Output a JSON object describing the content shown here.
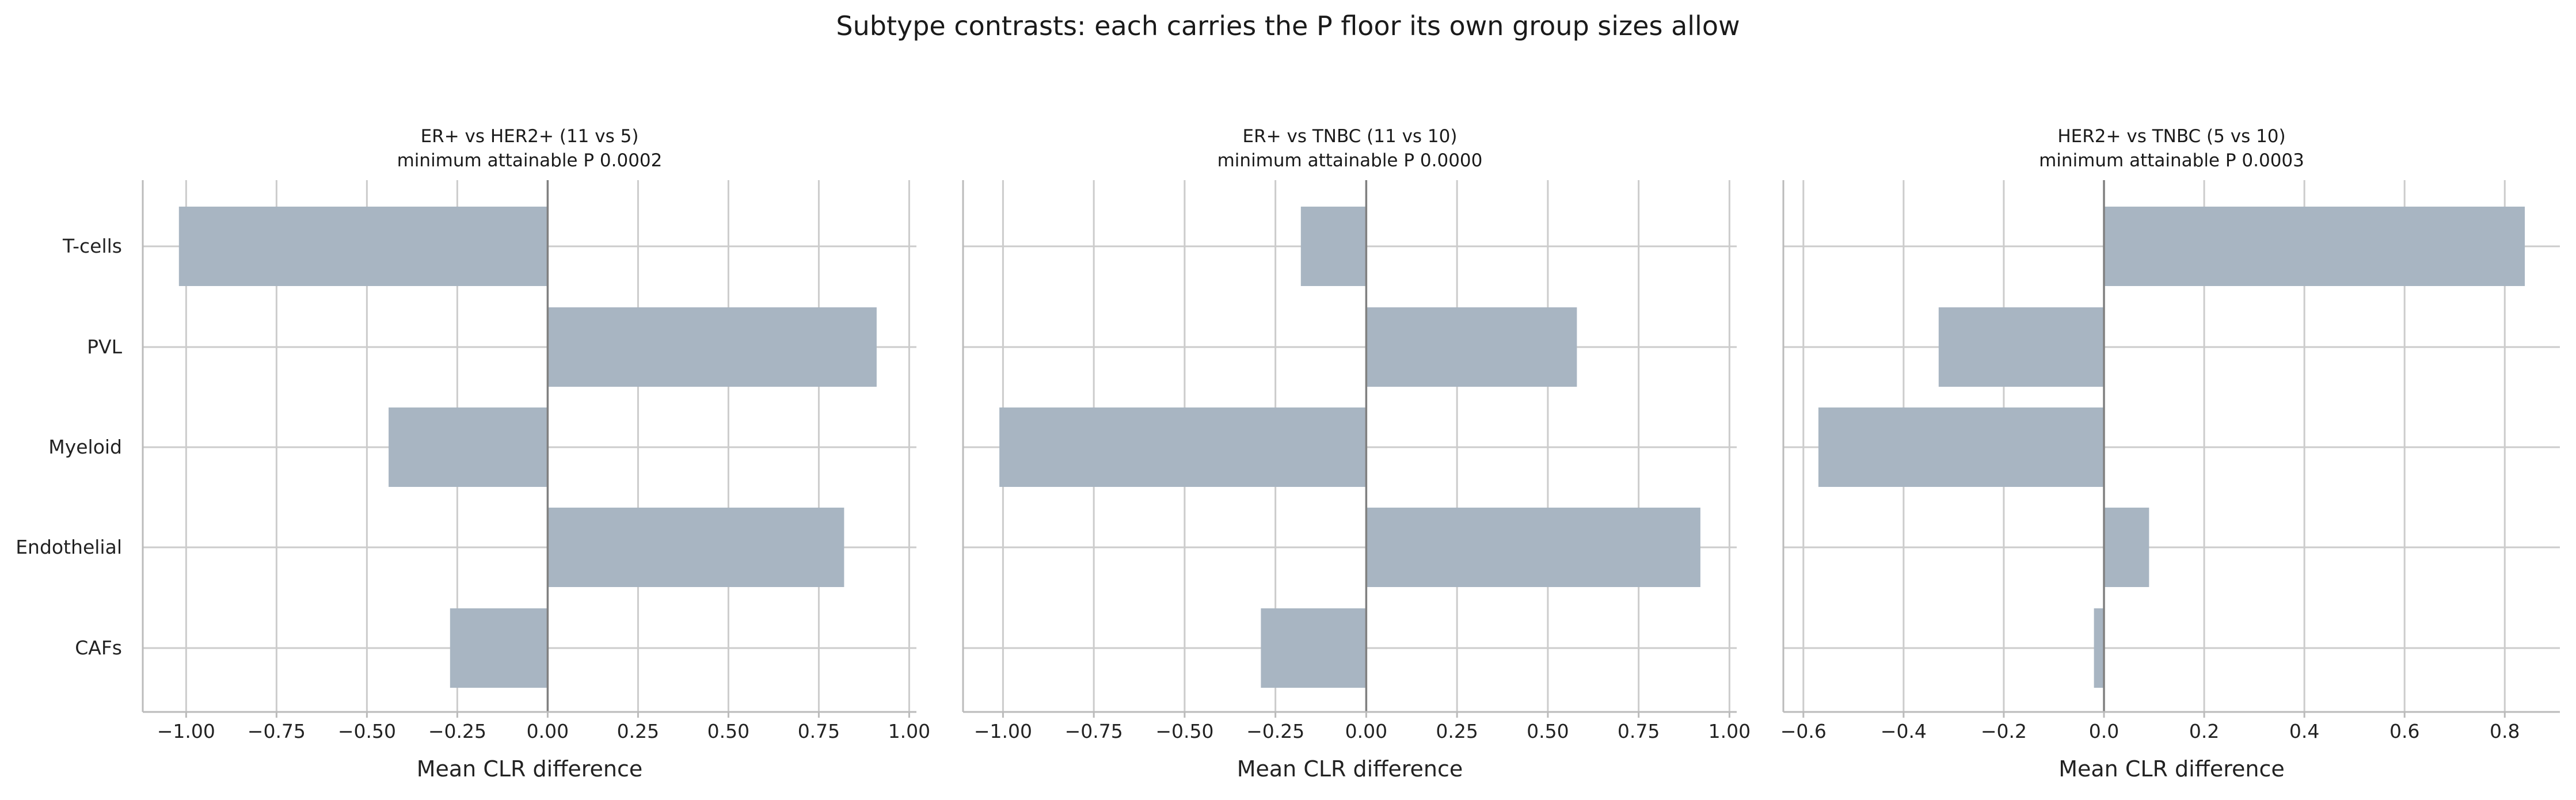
{
  "title": "Subtype contrasts: each carries the P floor its own group sizes allow",
  "chart_data": [
    {
      "type": "bar",
      "orientation": "horizontal",
      "title": "ER+ vs HER2+  (11 vs 5)",
      "subtitle": "minimum attainable P 0.0002",
      "xlabel": "Mean CLR difference",
      "ylabel": "",
      "categories": [
        "T-cells",
        "PVL",
        "Myeloid",
        "Endothelial",
        "CAFs"
      ],
      "values": [
        -1.02,
        0.91,
        -0.44,
        0.82,
        -0.27
      ],
      "xlim": [
        -1.12,
        1.02
      ],
      "xticks": [
        -1.0,
        -0.75,
        -0.5,
        -0.25,
        0.0,
        0.25,
        0.5,
        0.75,
        1.0
      ],
      "xtick_labels": [
        "−1.00",
        "−0.75",
        "−0.50",
        "−0.25",
        "0.00",
        "0.25",
        "0.50",
        "0.75",
        "1.00"
      ],
      "grid": true,
      "bar_color": "#a8b5c2"
    },
    {
      "type": "bar",
      "orientation": "horizontal",
      "title": "ER+ vs TNBC  (11 vs 10)",
      "subtitle": "minimum attainable P 0.0000",
      "xlabel": "Mean CLR difference",
      "ylabel": "",
      "categories": [
        "T-cells",
        "PVL",
        "Myeloid",
        "Endothelial",
        "CAFs"
      ],
      "values": [
        -0.18,
        0.58,
        -1.01,
        0.92,
        -0.29
      ],
      "xlim": [
        -1.11,
        1.02
      ],
      "xticks": [
        -1.0,
        -0.75,
        -0.5,
        -0.25,
        0.0,
        0.25,
        0.5,
        0.75,
        1.0
      ],
      "xtick_labels": [
        "−1.00",
        "−0.75",
        "−0.50",
        "−0.25",
        "0.00",
        "0.25",
        "0.50",
        "0.75",
        "1.00"
      ],
      "grid": true,
      "bar_color": "#a8b5c2"
    },
    {
      "type": "bar",
      "orientation": "horizontal",
      "title": "HER2+ vs TNBC  (5 vs 10)",
      "subtitle": "minimum attainable P 0.0003",
      "xlabel": "Mean CLR difference",
      "ylabel": "",
      "categories": [
        "T-cells",
        "PVL",
        "Myeloid",
        "Endothelial",
        "CAFs"
      ],
      "values": [
        0.84,
        -0.33,
        -0.57,
        0.09,
        -0.02
      ],
      "xlim": [
        -0.64,
        0.91
      ],
      "xticks": [
        -0.6,
        -0.4,
        -0.2,
        0.0,
        0.2,
        0.4,
        0.6,
        0.8
      ],
      "xtick_labels": [
        "−0.6",
        "−0.4",
        "−0.2",
        "0.0",
        "0.2",
        "0.4",
        "0.6",
        "0.8"
      ],
      "grid": true,
      "bar_color": "#a8b5c2"
    }
  ]
}
